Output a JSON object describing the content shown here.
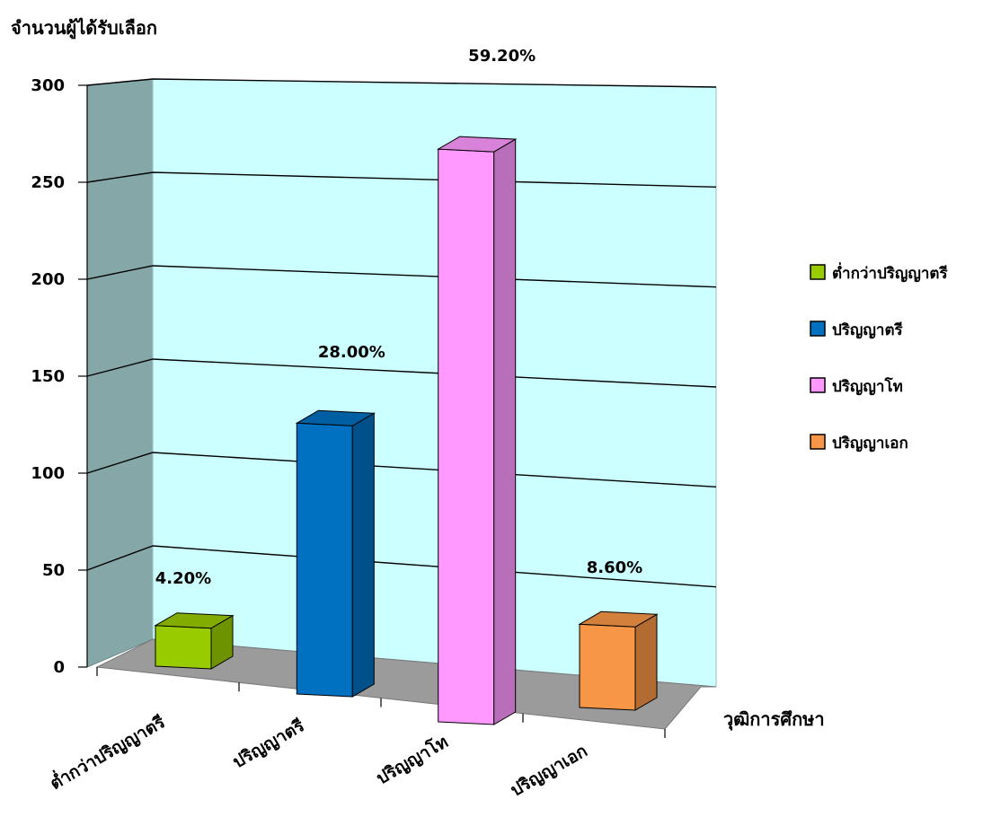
{
  "chart_data": {
    "type": "bar",
    "title": "",
    "ylabel": "จำนวนผู้ได้รับเลือก",
    "xlabel": "วุฒิการศึกษา",
    "ylim": [
      0,
      300
    ],
    "yticks": [
      "0",
      "50",
      "100",
      "150",
      "200",
      "250",
      "300"
    ],
    "categories": [
      "ต่ำกว่าปริญญาตรี",
      "ปริญญาตรี",
      "ปริญญาโท",
      "ปริญญาเอก"
    ],
    "values": [
      21,
      140,
      296,
      43
    ],
    "data_labels": [
      "4.20%",
      "28.00%",
      "59.20%",
      "8.60%"
    ],
    "colors": [
      "#99CC00",
      "#0070C0",
      "#FF99FF",
      "#F79646"
    ],
    "legend": {
      "placement": "right",
      "entries": [
        "ต่ำกว่าปริญญาตรี",
        "ปริญญาตรี",
        "ปริญญาโท",
        "ปริญญาเอก"
      ]
    },
    "grid": true,
    "style": "3d-column"
  }
}
